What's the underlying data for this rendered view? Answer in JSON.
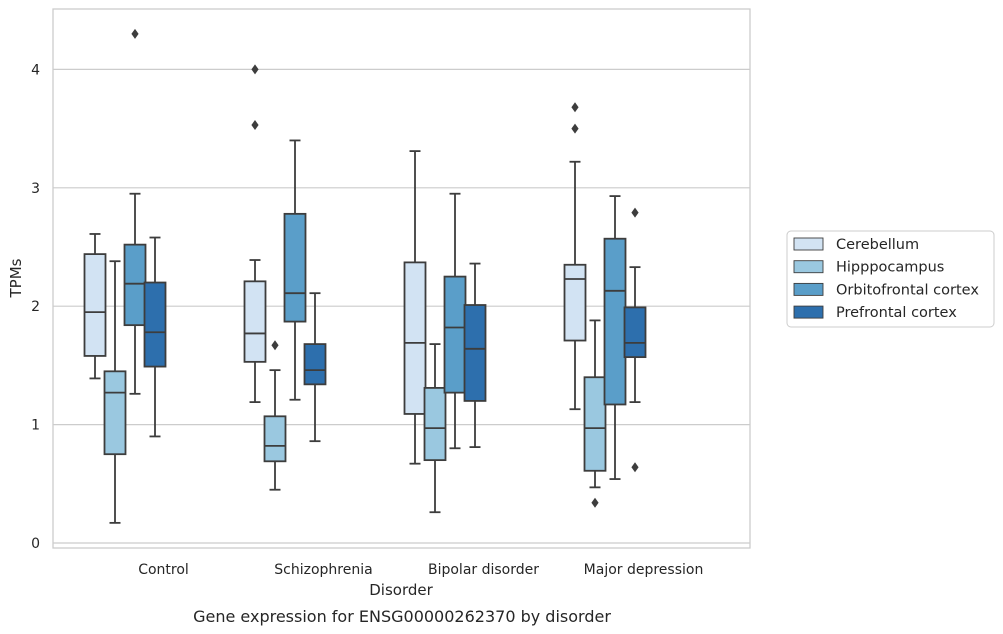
{
  "chart_data": {
    "type": "boxplot",
    "title": "",
    "caption": "Gene expression for ENSG00000262370 by disorder",
    "xlabel": "Disorder",
    "ylabel": "TPMs",
    "ylim": [
      -0.05,
      4.5
    ],
    "yticks": [
      0,
      1,
      2,
      3,
      4
    ],
    "grid": "horizontal",
    "legend_position": "right",
    "categories": [
      "Control",
      "Schizophrenia",
      "Bipolar disorder",
      "Major depression"
    ],
    "series": [
      {
        "name": "Cerebellum",
        "color": "#d2e3f3",
        "boxes": [
          {
            "whisker_low": 1.39,
            "q1": 1.58,
            "median": 1.95,
            "q3": 2.44,
            "whisker_high": 2.61,
            "outliers": []
          },
          {
            "whisker_low": 1.19,
            "q1": 1.53,
            "median": 1.77,
            "q3": 2.21,
            "whisker_high": 2.39,
            "outliers": [
              4.0,
              3.53
            ]
          },
          {
            "whisker_low": 0.67,
            "q1": 1.09,
            "median": 1.69,
            "q3": 2.37,
            "whisker_high": 3.31,
            "outliers": []
          },
          {
            "whisker_low": 1.13,
            "q1": 1.71,
            "median": 2.23,
            "q3": 2.35,
            "whisker_high": 3.22,
            "outliers": [
              3.68,
              3.5
            ]
          }
        ]
      },
      {
        "name": "Hipppocampus",
        "color": "#9ac8e0",
        "boxes": [
          {
            "whisker_low": 0.17,
            "q1": 0.75,
            "median": 1.27,
            "q3": 1.45,
            "whisker_high": 2.38,
            "outliers": []
          },
          {
            "whisker_low": 0.45,
            "q1": 0.69,
            "median": 0.82,
            "q3": 1.07,
            "whisker_high": 1.46,
            "outliers": [
              1.67
            ]
          },
          {
            "whisker_low": 0.26,
            "q1": 0.7,
            "median": 0.97,
            "q3": 1.31,
            "whisker_high": 1.68,
            "outliers": []
          },
          {
            "whisker_low": 0.47,
            "q1": 0.61,
            "median": 0.97,
            "q3": 1.4,
            "whisker_high": 1.88,
            "outliers": [
              0.34
            ]
          }
        ]
      },
      {
        "name": "Orbitofrontal cortex",
        "color": "#5a9ec9",
        "boxes": [
          {
            "whisker_low": 1.26,
            "q1": 1.84,
            "median": 2.19,
            "q3": 2.52,
            "whisker_high": 2.95,
            "outliers": [
              4.3
            ]
          },
          {
            "whisker_low": 1.21,
            "q1": 1.87,
            "median": 2.11,
            "q3": 2.78,
            "whisker_high": 3.4,
            "outliers": []
          },
          {
            "whisker_low": 0.8,
            "q1": 1.27,
            "median": 1.82,
            "q3": 2.25,
            "whisker_high": 2.95,
            "outliers": []
          },
          {
            "whisker_low": 0.54,
            "q1": 1.17,
            "median": 2.13,
            "q3": 2.57,
            "whisker_high": 2.93,
            "outliers": []
          }
        ]
      },
      {
        "name": "Prefrontal cortex",
        "color": "#2d6fad",
        "boxes": [
          {
            "whisker_low": 0.9,
            "q1": 1.49,
            "median": 1.78,
            "q3": 2.2,
            "whisker_high": 2.58,
            "outliers": []
          },
          {
            "whisker_low": 0.86,
            "q1": 1.34,
            "median": 1.46,
            "q3": 1.68,
            "whisker_high": 2.11,
            "outliers": []
          },
          {
            "whisker_low": 0.81,
            "q1": 1.2,
            "median": 1.64,
            "q3": 2.01,
            "whisker_high": 2.36,
            "outliers": []
          },
          {
            "whisker_low": 1.19,
            "q1": 1.57,
            "median": 1.69,
            "q3": 1.99,
            "whisker_high": 2.33,
            "outliers": [
              2.79,
              0.64
            ]
          }
        ]
      }
    ]
  }
}
